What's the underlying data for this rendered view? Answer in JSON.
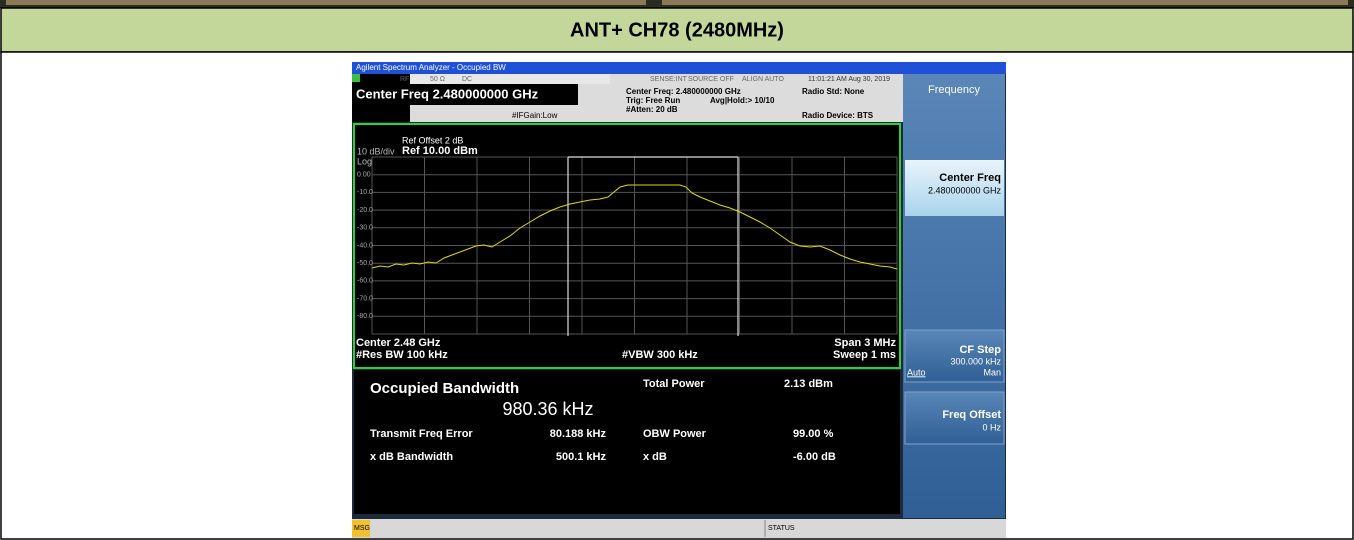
{
  "header": {
    "title": "ANT+ CH78 (2480MHz)"
  },
  "analyzer": {
    "window_title": "Agilent Spectrum Analyzer - Occupied BW",
    "status_bar": {
      "rf": "RF",
      "impedance": "50 Ω",
      "coupling": "DC",
      "sense": "SENSE:INT",
      "source": "SOURCE OFF",
      "align": "ALIGN AUTO",
      "timestamp": "11:01:21 AM Aug 30, 2019"
    },
    "center_freq": "Center Freq 2.480000000 GHz",
    "if_gain": "#IFGain:Low",
    "settings": [
      "Center Freq: 2.480000000 GHz",
      "Trig: Free Run",
      "#Atten: 20 dB"
    ],
    "avg_hold": "Avg|Hold:> 10/10",
    "radio_std": "Radio Std: None",
    "radio_device": "Radio Device: BTS",
    "graph": {
      "ref_offset": "Ref Offset 2 dB",
      "scale": "10 dB/div",
      "ref_level": "Ref 10.00 dBm",
      "scale_type": "Log",
      "y_labels": [
        "0.00",
        "-10.0",
        "-20.0",
        "-30.0",
        "-40.0",
        "-50.0",
        "-60.0",
        "-70.0",
        "-80.0"
      ],
      "center": "Center 2.48 GHz",
      "res_bw": "#Res BW 100 kHz",
      "vbw": "#VBW 300 kHz",
      "span": "Span 3 MHz",
      "sweep": "Sweep 1 ms"
    },
    "results": {
      "occupied_bandwidth_label": "Occupied Bandwidth",
      "occupied_bandwidth": "980.36 kHz",
      "total_power_label": "Total Power",
      "total_power": "2.13 dBm",
      "transmit_freq_error_label": "Transmit Freq Error",
      "transmit_freq_error": "80.188 kHz",
      "obw_power_label": "OBW Power",
      "obw_power": "99.00 %",
      "xdb_bandwidth_label": "x dB Bandwidth",
      "xdb_bandwidth": "500.1 kHz",
      "xdb_label": "x dB",
      "xdb": "-6.00 dB"
    },
    "softkeys": {
      "menu": "Frequency",
      "center_freq": "Center Freq",
      "center_freq_value": "2.480000000 GHz",
      "cf_step": "CF Step",
      "cf_step_value": "300.000 kHz",
      "auto": "Auto",
      "man": "Man",
      "freq_offset": "Freq Offset",
      "freq_offset_value": "0 Hz"
    },
    "bottom": {
      "msg": "MSG",
      "status": "STATUS"
    }
  }
}
